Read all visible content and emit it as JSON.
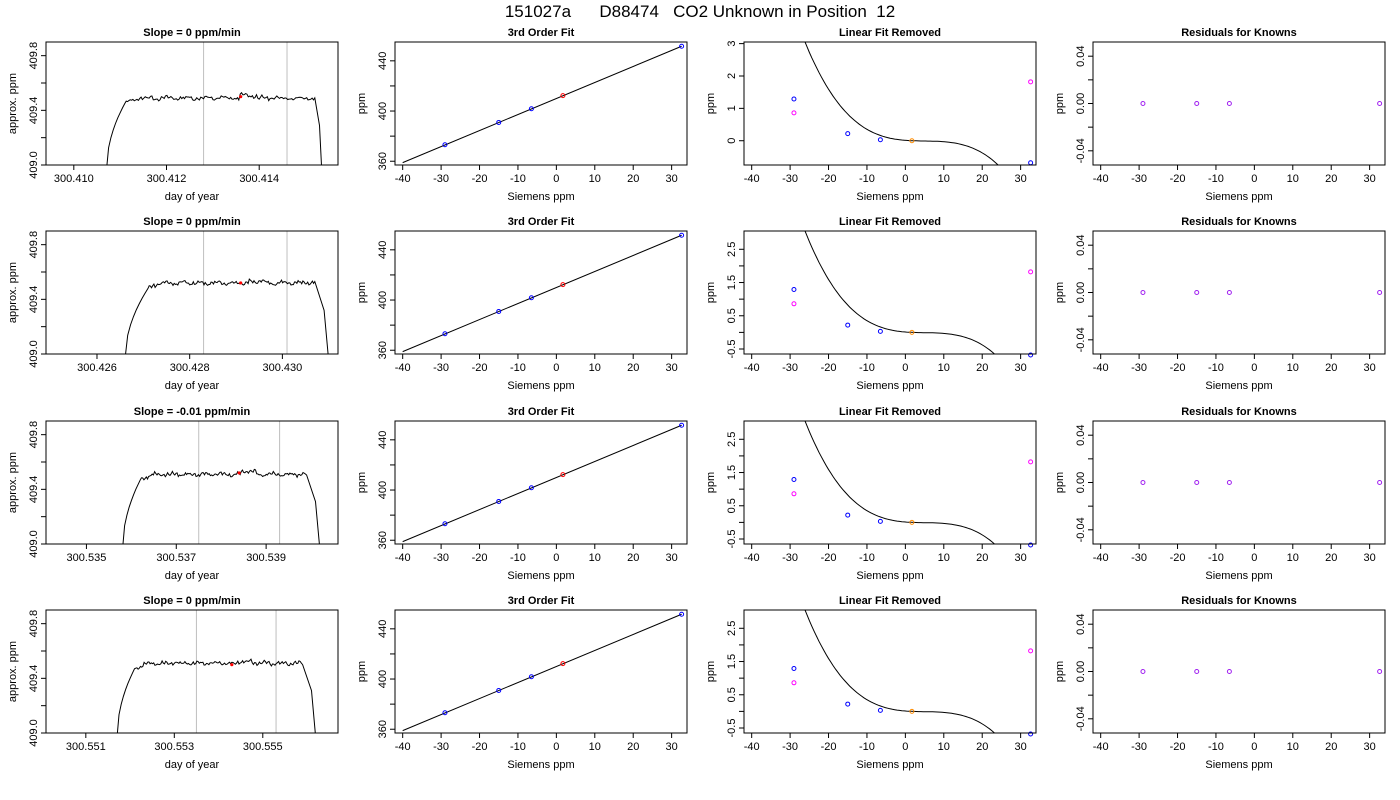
{
  "page": {
    "title": "151027a      D88474   CO2 Unknown in Position  12"
  },
  "colors": {
    "line": "#000000",
    "grid": "#bebebe",
    "known": "#0000ff",
    "unknown": "#ff0000",
    "unknown_removed": "#ff8c00",
    "raw": "#ff00ff",
    "resid": "#a020f0"
  },
  "chart_data": [
    {
      "type": "line",
      "title": "Slope =  0  ppm/min",
      "xlabel": "day of year",
      "ylabel": "approx. ppm",
      "xlim": [
        300.4094,
        300.4157
      ],
      "ylim": [
        409.0,
        409.9
      ],
      "xticks": [
        300.41,
        300.412,
        300.414
      ],
      "xtick_labels": [
        "300.410",
        "300.412",
        "300.414"
      ],
      "yticks": [
        409.0,
        409.4,
        409.8
      ],
      "ytick_labels": [
        "409.0",
        "409.4",
        "409.8"
      ],
      "yminor": [
        409.2,
        409.6
      ],
      "vlines": [
        300.4128,
        300.4146
      ],
      "trace": {
        "x_start": 300.4107,
        "rise_end": 300.4111,
        "x_plateau_end": 300.4152,
        "x_end": 300.4153,
        "level": 409.49,
        "peak": 409.52
      },
      "marker": {
        "x": 300.4136,
        "y": 409.5
      }
    },
    {
      "type": "line",
      "title": "Slope =  0  ppm/min",
      "xlabel": "day of year",
      "ylabel": "approx. ppm",
      "xlim": [
        300.4249,
        300.4312
      ],
      "ylim": [
        409.0,
        409.9
      ],
      "xticks": [
        300.426,
        300.428,
        300.43
      ],
      "xtick_labels": [
        "300.426",
        "300.428",
        "300.430"
      ],
      "yticks": [
        409.0,
        409.4,
        409.8
      ],
      "ytick_labels": [
        "409.0",
        "409.4",
        "409.8"
      ],
      "yminor": [
        409.2,
        409.6
      ],
      "vlines": [
        300.4283,
        300.4301
      ],
      "trace": {
        "x_start": 300.4266,
        "rise_end": 300.4271,
        "x_plateau_end": 300.4307,
        "x_end": 300.4309,
        "level": 409.52,
        "peak": 409.54
      },
      "marker": {
        "x": 300.4291,
        "y": 409.52
      }
    },
    {
      "type": "line",
      "title": "Slope =  -0.01  ppm/min",
      "xlabel": "day of year",
      "ylabel": "approx. ppm",
      "xlim": [
        300.5341,
        300.5406
      ],
      "ylim": [
        409.0,
        409.9
      ],
      "xticks": [
        300.535,
        300.537,
        300.539
      ],
      "xtick_labels": [
        "300.535",
        "300.537",
        "300.539"
      ],
      "yticks": [
        409.0,
        409.4,
        409.8
      ],
      "ytick_labels": [
        "409.0",
        "409.4",
        "409.8"
      ],
      "yminor": [
        409.2,
        409.6
      ],
      "vlines": [
        300.5375,
        300.5393
      ],
      "trace": {
        "x_start": 300.5358,
        "rise_end": 300.5362,
        "x_plateau_end": 300.5399,
        "x_end": 300.5401,
        "level": 409.51,
        "peak": 409.55
      },
      "marker": {
        "x": 300.5384,
        "y": 409.52
      }
    },
    {
      "type": "line",
      "title": "Slope =  0  ppm/min",
      "xlabel": "day of year",
      "ylabel": "approx. ppm",
      "xlim": [
        300.5501,
        300.5567
      ],
      "ylim": [
        409.0,
        409.9
      ],
      "xticks": [
        300.551,
        300.553,
        300.555
      ],
      "xtick_labels": [
        "300.551",
        "300.553",
        "300.555"
      ],
      "yticks": [
        409.0,
        409.4,
        409.8
      ],
      "ytick_labels": [
        "409.0",
        "409.4",
        "409.8"
      ],
      "yminor": [
        409.2,
        409.6
      ],
      "vlines": [
        300.5535,
        300.5553
      ],
      "trace": {
        "x_start": 300.5517,
        "rise_end": 300.5521,
        "x_plateau_end": 300.5559,
        "x_end": 300.5561,
        "level": 409.51,
        "peak": 409.53
      },
      "marker": {
        "x": 300.5543,
        "y": 409.5
      }
    },
    {
      "type": "scatter",
      "title": "3rd Order Fit",
      "xlabel": "Siemens ppm",
      "ylabel": "ppm",
      "xlim": [
        -42,
        34
      ],
      "ylim": [
        357,
        455
      ],
      "xticks": [
        -40,
        -30,
        -20,
        -10,
        0,
        10,
        20,
        30
      ],
      "xtick_labels": [
        "-40",
        "-30",
        "-20",
        "-10",
        "0",
        "10",
        "20",
        "30"
      ],
      "yticks": [
        360,
        400,
        440
      ],
      "ytick_labels": [
        "360",
        "400",
        "440"
      ],
      "yminor": [
        380,
        420
      ],
      "fit_line": {
        "x": [
          -40,
          32.6
        ],
        "y": [
          358.9,
          451.6
        ]
      },
      "knowns": {
        "x": [
          -29.0,
          -15.0,
          -6.5,
          32.6
        ],
        "y": [
          373.1,
          390.9,
          401.8,
          451.6
        ]
      },
      "unknown": {
        "x": [
          1.7
        ],
        "y": [
          412.3
        ]
      }
    },
    {
      "type": "scatter",
      "title": "3rd Order Fit",
      "xlabel": "Siemens ppm",
      "ylabel": "ppm",
      "xlim": [
        -42,
        34
      ],
      "ylim": [
        357,
        455
      ],
      "xticks": [
        -40,
        -30,
        -20,
        -10,
        0,
        10,
        20,
        30
      ],
      "xtick_labels": [
        "-40",
        "-30",
        "-20",
        "-10",
        "0",
        "10",
        "20",
        "30"
      ],
      "yticks": [
        360,
        400,
        440
      ],
      "ytick_labels": [
        "360",
        "400",
        "440"
      ],
      "yminor": [
        380,
        420
      ],
      "fit_line": {
        "x": [
          -40,
          32.6
        ],
        "y": [
          358.9,
          451.6
        ]
      },
      "knowns": {
        "x": [
          -29.0,
          -15.0,
          -6.5,
          32.6
        ],
        "y": [
          373.1,
          390.9,
          401.8,
          451.6
        ]
      },
      "unknown": {
        "x": [
          1.7
        ],
        "y": [
          412.3
        ]
      }
    },
    {
      "type": "scatter",
      "title": "3rd Order Fit",
      "xlabel": "Siemens ppm",
      "ylabel": "ppm",
      "xlim": [
        -42,
        34
      ],
      "ylim": [
        357,
        455
      ],
      "xticks": [
        -40,
        -30,
        -20,
        -10,
        0,
        10,
        20,
        30
      ],
      "xtick_labels": [
        "-40",
        "-30",
        "-20",
        "-10",
        "0",
        "10",
        "20",
        "30"
      ],
      "yticks": [
        360,
        400,
        440
      ],
      "ytick_labels": [
        "360",
        "400",
        "440"
      ],
      "yminor": [
        380,
        420
      ],
      "fit_line": {
        "x": [
          -40,
          32.6
        ],
        "y": [
          358.9,
          451.6
        ]
      },
      "knowns": {
        "x": [
          -29.0,
          -15.0,
          -6.5,
          32.6
        ],
        "y": [
          373.1,
          390.9,
          401.8,
          451.6
        ]
      },
      "unknown": {
        "x": [
          1.7
        ],
        "y": [
          412.3
        ]
      }
    },
    {
      "type": "scatter",
      "title": "3rd Order Fit",
      "xlabel": "Siemens ppm",
      "ylabel": "ppm",
      "xlim": [
        -42,
        34
      ],
      "ylim": [
        357,
        455
      ],
      "xticks": [
        -40,
        -30,
        -20,
        -10,
        0,
        10,
        20,
        30
      ],
      "xtick_labels": [
        "-40",
        "-30",
        "-20",
        "-10",
        "0",
        "10",
        "20",
        "30"
      ],
      "yticks": [
        360,
        400,
        440
      ],
      "ytick_labels": [
        "360",
        "400",
        "440"
      ],
      "yminor": [
        380,
        420
      ],
      "fit_line": {
        "x": [
          -40,
          32.6
        ],
        "y": [
          358.9,
          451.6
        ]
      },
      "knowns": {
        "x": [
          -29.0,
          -15.0,
          -6.5,
          32.6
        ],
        "y": [
          373.1,
          390.9,
          401.8,
          451.6
        ]
      },
      "unknown": {
        "x": [
          1.7
        ],
        "y": [
          412.3
        ]
      }
    },
    {
      "type": "scatter",
      "title": "Linear Fit Removed",
      "xlabel": "Siemens ppm",
      "ylabel": "ppm",
      "xlim": [
        -42,
        34
      ],
      "ylim": [
        -0.75,
        3.05
      ],
      "xticks": [
        -40,
        -30,
        -20,
        -10,
        0,
        10,
        20,
        30
      ],
      "xtick_labels": [
        "-40",
        "-30",
        "-20",
        "-10",
        "0",
        "10",
        "20",
        "30"
      ],
      "yticks": [
        0,
        1,
        2,
        3
      ],
      "ytick_labels": [
        "0",
        "1",
        "2",
        "3"
      ],
      "yminor": [],
      "curve": {
        "x0": 1.8,
        "a": -0.0001,
        "b": 0.00095,
        "c": -0.0048
      },
      "knowns": {
        "x": [
          -29.0,
          -15.0,
          -6.5,
          32.6
        ],
        "y": [
          1.29,
          0.22,
          0.03,
          -0.68
        ]
      },
      "raw": {
        "x": [
          -29.0,
          32.6
        ],
        "y": [
          0.86,
          1.82
        ]
      },
      "unknown": {
        "x": [
          1.7
        ],
        "y": [
          0.0
        ]
      }
    },
    {
      "type": "scatter",
      "title": "Linear Fit Removed",
      "xlabel": "Siemens ppm",
      "ylabel": "ppm",
      "xlim": [
        -42,
        34
      ],
      "ylim": [
        -0.65,
        3.05
      ],
      "xticks": [
        -40,
        -30,
        -20,
        -10,
        0,
        10,
        20,
        30
      ],
      "xtick_labels": [
        "-40",
        "-30",
        "-20",
        "-10",
        "0",
        "10",
        "20",
        "30"
      ],
      "yticks": [
        -0.5,
        0.5,
        1.5,
        2.5
      ],
      "ytick_labels": [
        "-0.5",
        "0.5",
        "1.5",
        "2.5"
      ],
      "yminor": [
        0,
        1,
        2
      ],
      "curve": {
        "x0": 1.8,
        "a": -0.0001,
        "b": 0.00095,
        "c": -0.0048
      },
      "knowns": {
        "x": [
          -29.0,
          -15.0,
          -6.5,
          32.6
        ],
        "y": [
          1.29,
          0.22,
          0.03,
          -0.68
        ]
      },
      "raw": {
        "x": [
          -29.0,
          32.6
        ],
        "y": [
          0.86,
          1.82
        ]
      },
      "unknown": {
        "x": [
          1.7
        ],
        "y": [
          0.0
        ]
      }
    },
    {
      "type": "scatter",
      "title": "Linear Fit Removed",
      "xlabel": "Siemens ppm",
      "ylabel": "ppm",
      "xlim": [
        -42,
        34
      ],
      "ylim": [
        -0.65,
        3.05
      ],
      "xticks": [
        -40,
        -30,
        -20,
        -10,
        0,
        10,
        20,
        30
      ],
      "xtick_labels": [
        "-40",
        "-30",
        "-20",
        "-10",
        "0",
        "10",
        "20",
        "30"
      ],
      "yticks": [
        -0.5,
        0.5,
        1.5,
        2.5
      ],
      "ytick_labels": [
        "-0.5",
        "0.5",
        "1.5",
        "2.5"
      ],
      "yminor": [
        0,
        1,
        2
      ],
      "curve": {
        "x0": 1.8,
        "a": -0.0001,
        "b": 0.00095,
        "c": -0.0048
      },
      "knowns": {
        "x": [
          -29.0,
          -15.0,
          -6.5,
          32.6
        ],
        "y": [
          1.29,
          0.22,
          0.03,
          -0.68
        ]
      },
      "raw": {
        "x": [
          -29.0,
          32.6
        ],
        "y": [
          0.86,
          1.82
        ]
      },
      "unknown": {
        "x": [
          1.7
        ],
        "y": [
          0.0
        ]
      }
    },
    {
      "type": "scatter",
      "title": "Linear Fit Removed",
      "xlabel": "Siemens ppm",
      "ylabel": "ppm",
      "xlim": [
        -42,
        34
      ],
      "ylim": [
        -0.65,
        3.05
      ],
      "xticks": [
        -40,
        -30,
        -20,
        -10,
        0,
        10,
        20,
        30
      ],
      "xtick_labels": [
        "-40",
        "-30",
        "-20",
        "-10",
        "0",
        "10",
        "20",
        "30"
      ],
      "yticks": [
        -0.5,
        0.5,
        1.5,
        2.5
      ],
      "ytick_labels": [
        "-0.5",
        "0.5",
        "1.5",
        "2.5"
      ],
      "yminor": [
        0,
        1,
        2
      ],
      "curve": {
        "x0": 1.8,
        "a": -0.0001,
        "b": 0.00095,
        "c": -0.0048
      },
      "knowns": {
        "x": [
          -29.0,
          -15.0,
          -6.5,
          32.6
        ],
        "y": [
          1.29,
          0.22,
          0.03,
          -0.68
        ]
      },
      "raw": {
        "x": [
          -29.0,
          32.6
        ],
        "y": [
          0.86,
          1.82
        ]
      },
      "unknown": {
        "x": [
          1.7
        ],
        "y": [
          0.0
        ]
      }
    },
    {
      "type": "scatter",
      "title": "Residuals for Knowns",
      "xlabel": "Siemens ppm",
      "ylabel": "ppm",
      "xlim": [
        -42,
        34
      ],
      "ylim": [
        -0.052,
        0.052
      ],
      "xticks": [
        -40,
        -30,
        -20,
        -10,
        0,
        10,
        20,
        30
      ],
      "xtick_labels": [
        "-40",
        "-30",
        "-20",
        "-10",
        "0",
        "10",
        "20",
        "30"
      ],
      "yticks": [
        -0.04,
        0.0,
        0.04
      ],
      "ytick_labels": [
        "-0.04",
        "0.00",
        "0.04"
      ],
      "yminor": [
        -0.02,
        0.02
      ],
      "knowns": {
        "x": [
          -29.0,
          -15.0,
          -6.5,
          32.6
        ],
        "y": [
          0,
          0,
          0,
          0
        ]
      }
    },
    {
      "type": "scatter",
      "title": "Residuals for Knowns",
      "xlabel": "Siemens ppm",
      "ylabel": "ppm",
      "xlim": [
        -42,
        34
      ],
      "ylim": [
        -0.052,
        0.052
      ],
      "xticks": [
        -40,
        -30,
        -20,
        -10,
        0,
        10,
        20,
        30
      ],
      "xtick_labels": [
        "-40",
        "-30",
        "-20",
        "-10",
        "0",
        "10",
        "20",
        "30"
      ],
      "yticks": [
        -0.04,
        0.0,
        0.04
      ],
      "ytick_labels": [
        "-0.04",
        "0.00",
        "0.04"
      ],
      "yminor": [
        -0.02,
        0.02
      ],
      "knowns": {
        "x": [
          -29.0,
          -15.0,
          -6.5,
          32.6
        ],
        "y": [
          0,
          0,
          0,
          0
        ]
      }
    },
    {
      "type": "scatter",
      "title": "Residuals for Knowns",
      "xlabel": "Siemens ppm",
      "ylabel": "ppm",
      "xlim": [
        -42,
        34
      ],
      "ylim": [
        -0.052,
        0.052
      ],
      "xticks": [
        -40,
        -30,
        -20,
        -10,
        0,
        10,
        20,
        30
      ],
      "xtick_labels": [
        "-40",
        "-30",
        "-20",
        "-10",
        "0",
        "10",
        "20",
        "30"
      ],
      "yticks": [
        -0.04,
        0.0,
        0.04
      ],
      "ytick_labels": [
        "-0.04",
        "0.00",
        "0.04"
      ],
      "yminor": [
        -0.02,
        0.02
      ],
      "knowns": {
        "x": [
          -29.0,
          -15.0,
          -6.5,
          32.6
        ],
        "y": [
          0,
          0,
          0,
          0
        ]
      }
    },
    {
      "type": "scatter",
      "title": "Residuals for Knowns",
      "xlabel": "Siemens ppm",
      "ylabel": "ppm",
      "xlim": [
        -42,
        34
      ],
      "ylim": [
        -0.052,
        0.052
      ],
      "xticks": [
        -40,
        -30,
        -20,
        -10,
        0,
        10,
        20,
        30
      ],
      "xtick_labels": [
        "-40",
        "-30",
        "-20",
        "-10",
        "0",
        "10",
        "20",
        "30"
      ],
      "yticks": [
        -0.04,
        0.0,
        0.04
      ],
      "ytick_labels": [
        "-0.04",
        "0.00",
        "0.04"
      ],
      "yminor": [
        -0.02,
        0.02
      ],
      "knowns": {
        "x": [
          -29.0,
          -15.0,
          -6.5,
          32.6
        ],
        "y": [
          0,
          0,
          0,
          0
        ]
      }
    }
  ]
}
